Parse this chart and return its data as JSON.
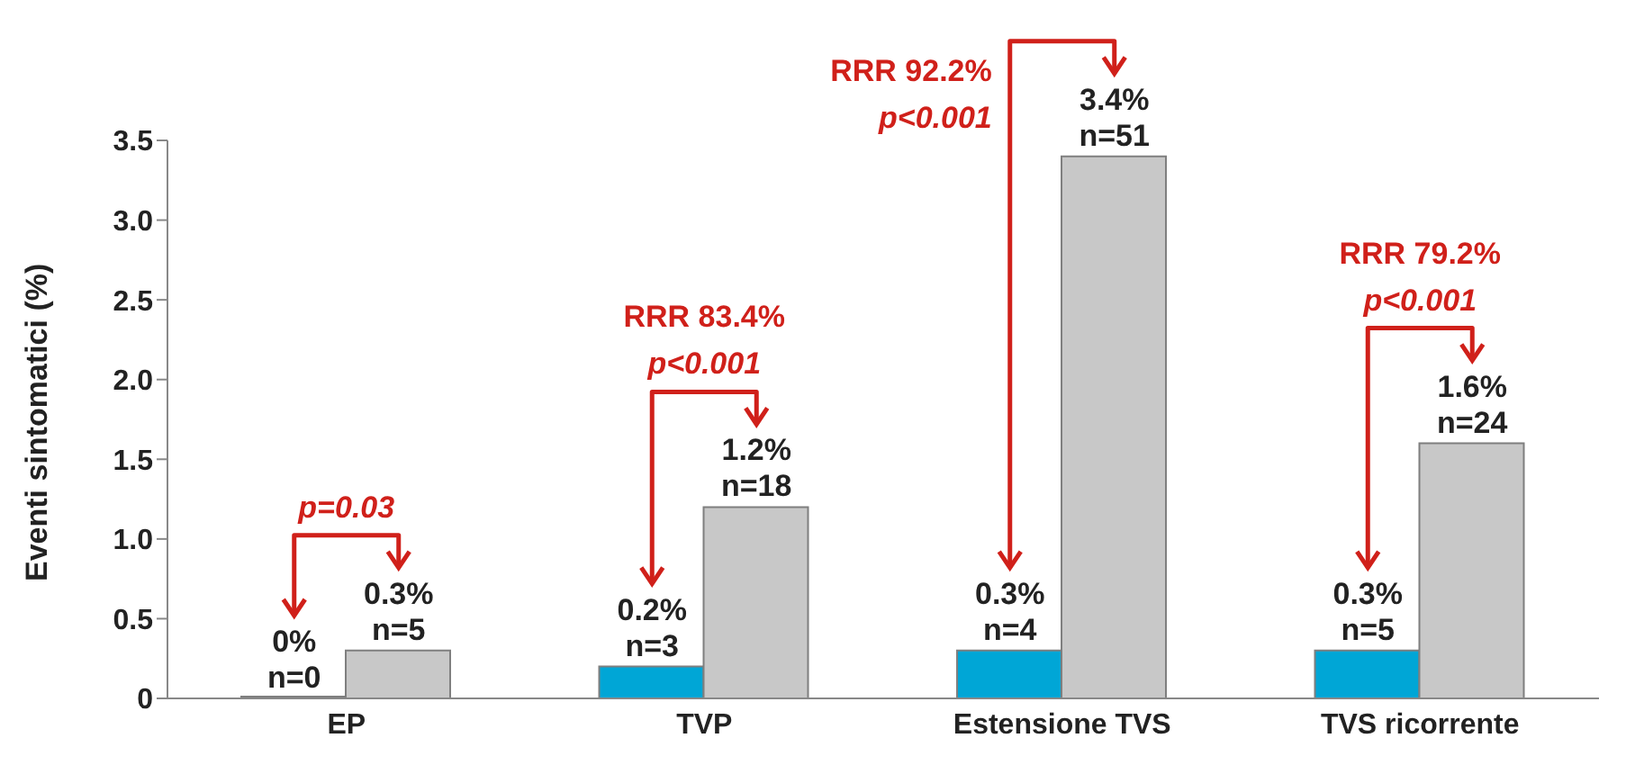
{
  "chart_data": {
    "type": "bar",
    "ylabel": "Eventi sintomatici (%)",
    "categories": [
      "EP",
      "TVP",
      "Estensione TVS",
      "TVS ricorrente"
    ],
    "series": [
      {
        "color": "#00a6d6",
        "values": [
          0,
          0.2,
          0.3,
          0.3
        ],
        "value_labels": [
          "0%\nn=0",
          "0.2%\nn=3",
          "0.3%\nn=4",
          "0.3%\nn=5"
        ]
      },
      {
        "color": "#c8c8c8",
        "values": [
          0.3,
          1.2,
          3.4,
          1.6
        ],
        "value_labels": [
          "0.3%\nn=5",
          "1.2%\nn=18",
          "3.4%\nn=51",
          "1.6%\nn=24"
        ]
      }
    ],
    "ylim": [
      0,
      3.5
    ],
    "yticks": [
      0,
      0.5,
      {
        "value": 1,
        "label": "1.0"
      },
      1.5,
      {
        "value": 2,
        "label": "2.0"
      },
      2.5,
      {
        "value": 3,
        "label": "3.0"
      },
      3.5
    ],
    "annotations": [
      "p=0.03",
      "RRR 83.4%\np<0.001",
      "RRR 92.2%\np<0.001",
      "RRR 79.2%\np<0.001"
    ]
  }
}
